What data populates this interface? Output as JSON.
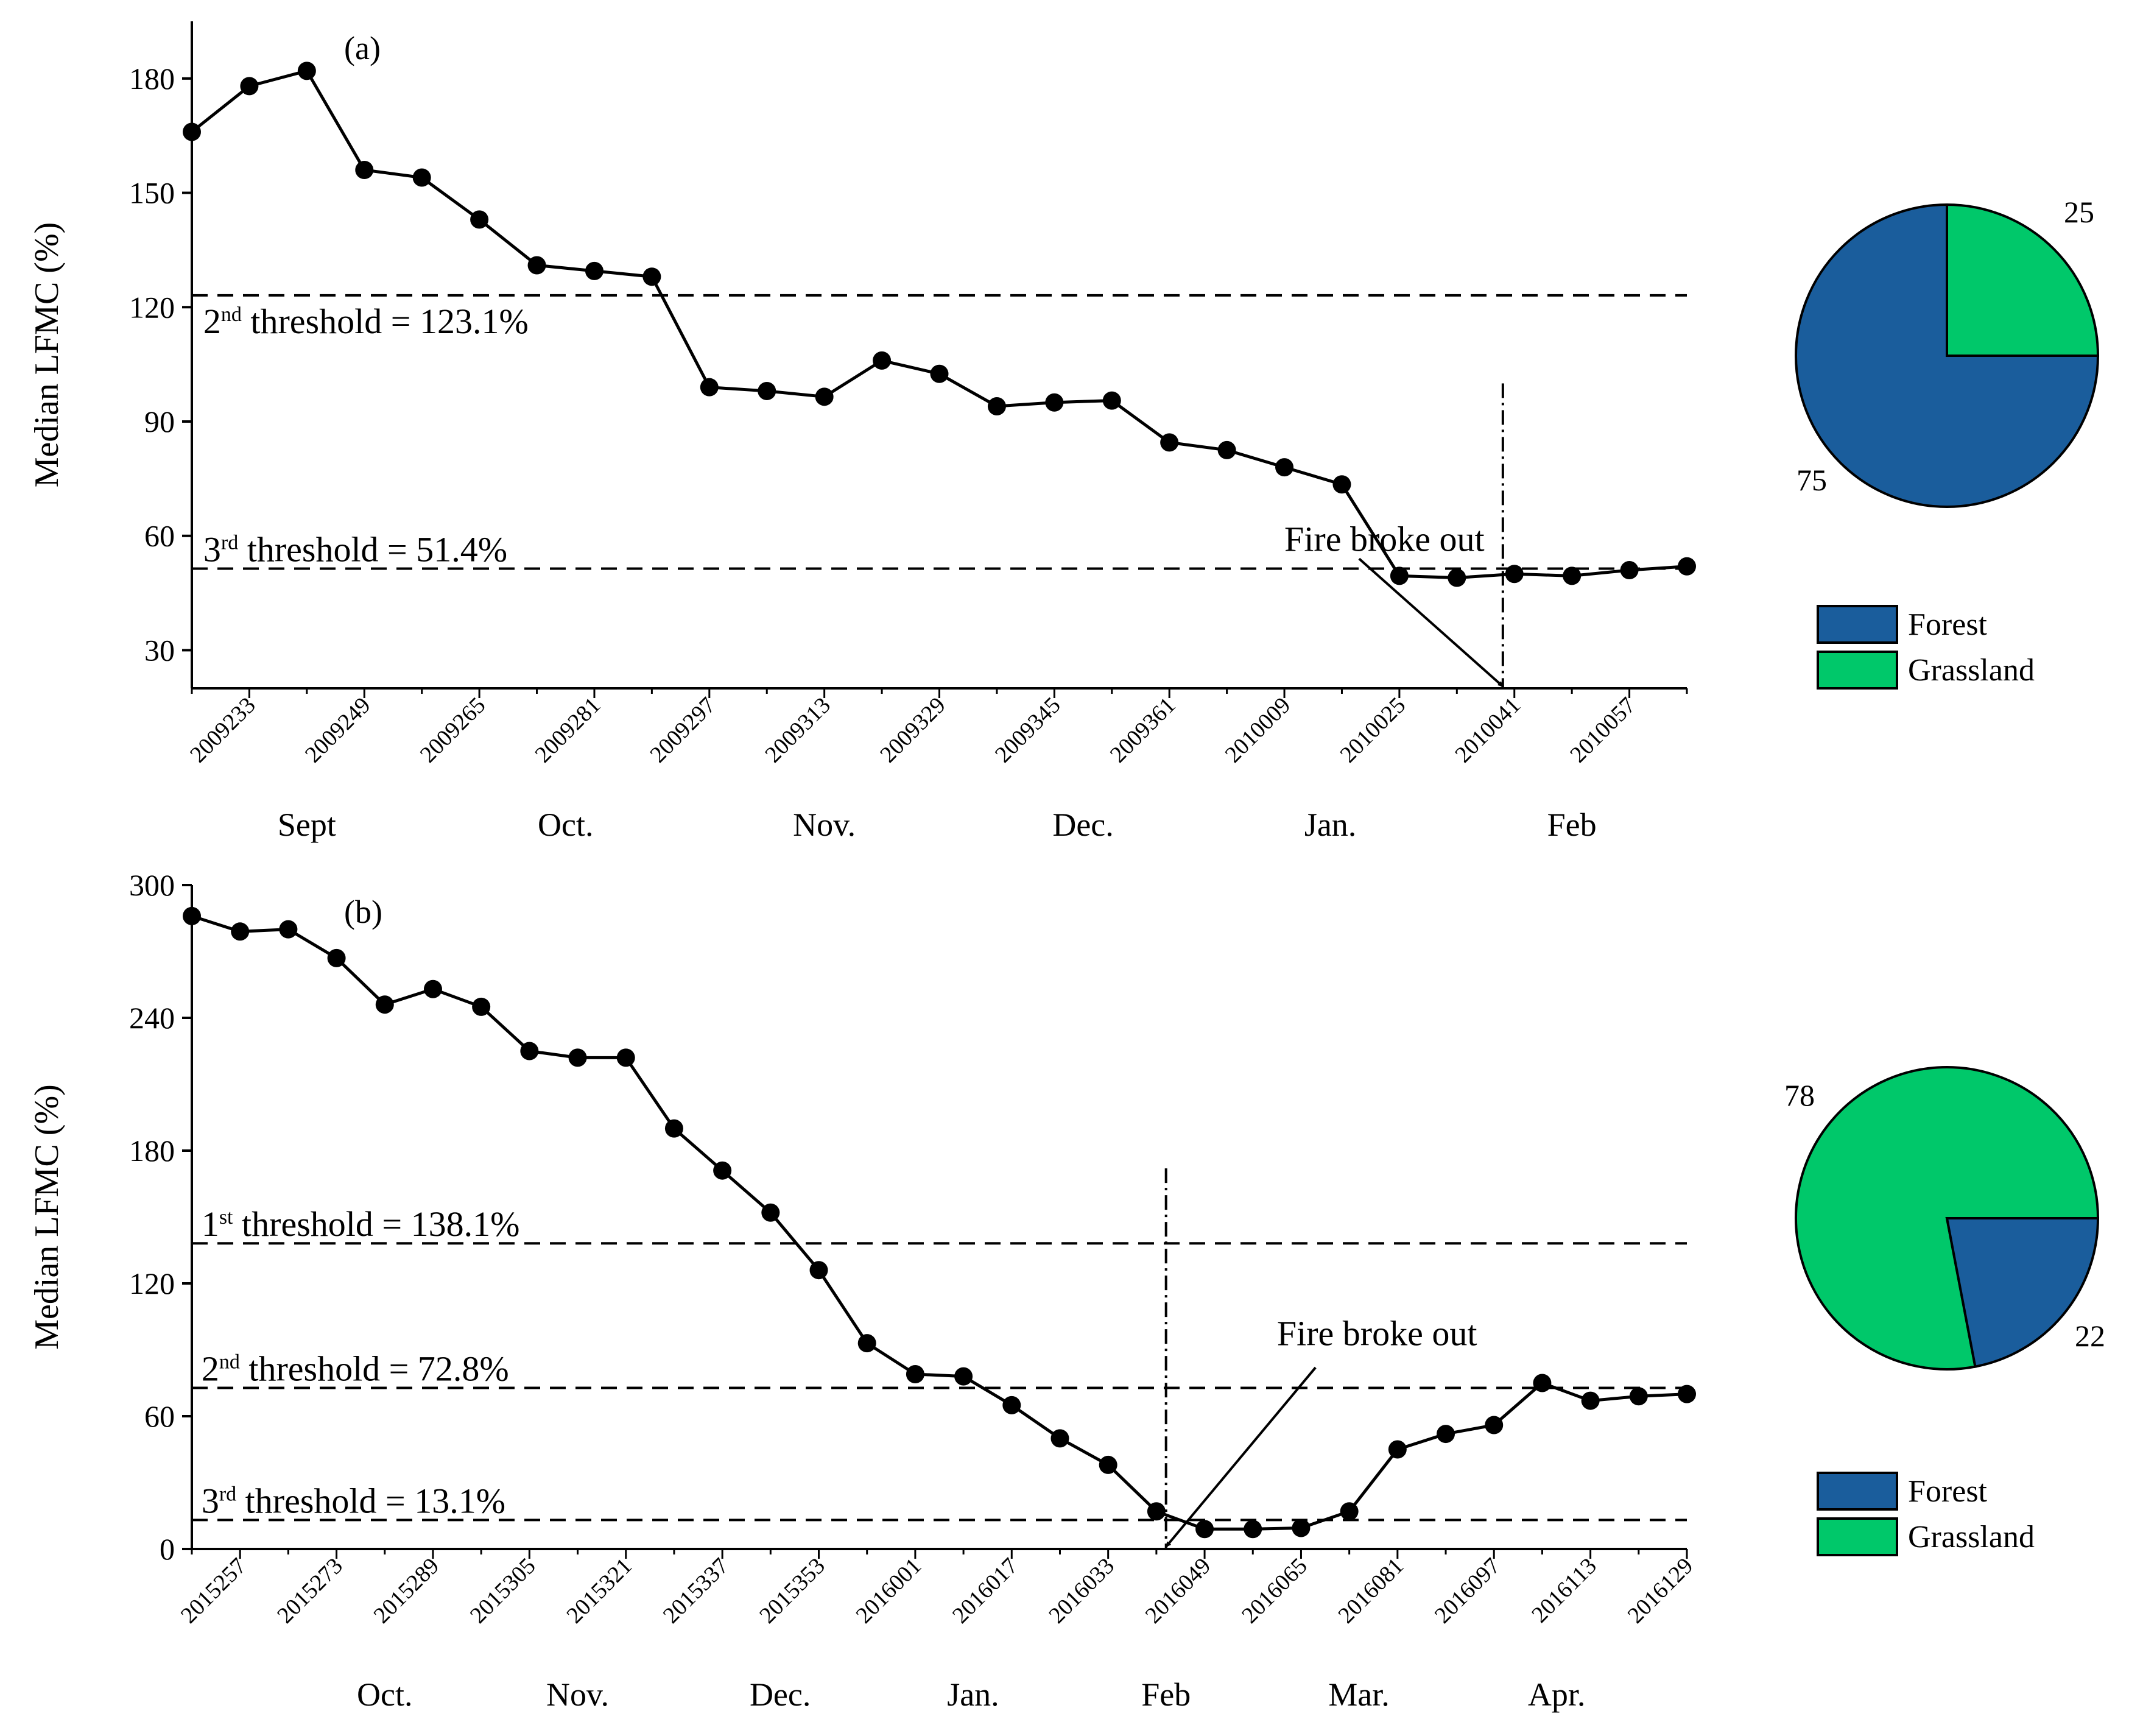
{
  "colors": {
    "forest": "#1a5d9c",
    "grassland": "#00c86a",
    "line": "#000000"
  },
  "chart_data": [
    {
      "type": "line",
      "panel_label": "(a)",
      "ylabel": "Median LFMC (%)",
      "ylim": [
        20,
        195
      ],
      "yticks": [
        30,
        60,
        90,
        120,
        150,
        180
      ],
      "x_tick_labels": [
        "2009233",
        "2009249",
        "2009265",
        "2009281",
        "2009297",
        "2009313",
        "2009329",
        "2009345",
        "2009361",
        "2010009",
        "2010025",
        "2010041",
        "2010057"
      ],
      "x_first_tick_index": 1,
      "x_tick_step": 2,
      "months": [
        {
          "label": "Sept",
          "index": 2
        },
        {
          "label": "Oct.",
          "index": 6.5
        },
        {
          "label": "Nov.",
          "index": 11
        },
        {
          "label": "Dec.",
          "index": 15.5
        },
        {
          "label": "Jan.",
          "index": 19.8
        },
        {
          "label": "Feb",
          "index": 24
        }
      ],
      "series": [
        {
          "name": "Median LFMC",
          "values": [
            166,
            178,
            182,
            156,
            154,
            143,
            131,
            129.5,
            128,
            99,
            98,
            96.5,
            106,
            102.5,
            94,
            95,
            95.5,
            84.5,
            82.5,
            78,
            73.5,
            49.5,
            49,
            50,
            49.5,
            51,
            52
          ]
        }
      ],
      "thresholds": [
        {
          "ord": "2",
          "sup": "nd",
          "rest": " threshold = 123.1%",
          "value": 123.1,
          "label_index": 0.2
        },
        {
          "ord": "3",
          "sup": "rd",
          "rest": " threshold = 51.4%",
          "value": 51.4,
          "label_index": 0.2
        }
      ],
      "fire_event": {
        "label": "Fire broke out",
        "x_index": 22.8,
        "line_top": 100,
        "label_x_index": 19,
        "label_y": 56,
        "arrow_from": [
          20.3,
          54
        ],
        "arrow_to": [
          22.8,
          20.5
        ]
      },
      "pie": {
        "slices": [
          {
            "name": "Forest",
            "value": 75,
            "label": "75"
          },
          {
            "name": "Grassland",
            "value": 25,
            "label": "25"
          }
        ]
      },
      "legend": [
        {
          "name": "Forest",
          "label": "Forest"
        },
        {
          "name": "Grassland",
          "label": "Grassland"
        }
      ]
    },
    {
      "type": "line",
      "panel_label": "(b)",
      "ylabel": "Median LFMC (%)",
      "ylim": [
        0,
        300
      ],
      "yticks": [
        0,
        60,
        120,
        180,
        240,
        300
      ],
      "x_tick_labels": [
        "2015257",
        "2015273",
        "2015289",
        "2015305",
        "2015321",
        "2015337",
        "2015353",
        "2016001",
        "2016017",
        "2016033",
        "2016049",
        "2016065",
        "2016081",
        "2016097",
        "2016113",
        "2016129"
      ],
      "x_first_tick_index": 1,
      "x_tick_step": 2,
      "months": [
        {
          "label": "Oct.",
          "index": 4
        },
        {
          "label": "Nov.",
          "index": 8
        },
        {
          "label": "Dec.",
          "index": 12.2
        },
        {
          "label": "Jan.",
          "index": 16.2
        },
        {
          "label": "Feb",
          "index": 20.2
        },
        {
          "label": "Mar.",
          "index": 24.2
        },
        {
          "label": "Apr.",
          "index": 28.3
        }
      ],
      "series": [
        {
          "name": "Median LFMC",
          "values": [
            286,
            279,
            280,
            267,
            246,
            253,
            245,
            225,
            222,
            222,
            190,
            171,
            152,
            126,
            93,
            79,
            78,
            65,
            50,
            38,
            17,
            9,
            9,
            9.5,
            17,
            45,
            52,
            56,
            75,
            67,
            69,
            70
          ]
        }
      ],
      "thresholds": [
        {
          "ord": "1",
          "sup": "st",
          "rest": " threshold = 138.1%",
          "value": 138.1,
          "label_index": 0.2
        },
        {
          "ord": "2",
          "sup": "nd",
          "rest": " threshold = 72.8%",
          "value": 72.8,
          "label_index": 0.2
        },
        {
          "ord": "3",
          "sup": "rd",
          "rest": " threshold = 13.1%",
          "value": 13.1,
          "label_index": 0.2
        }
      ],
      "fire_event": {
        "label": "Fire broke out",
        "x_index": 20.2,
        "line_top": 172,
        "label_x_index": 22.5,
        "label_y": 92,
        "arrow_from": [
          23.3,
          82
        ],
        "arrow_to": [
          20.2,
          1
        ]
      },
      "pie": {
        "slices": [
          {
            "name": "Grassland",
            "value": 78,
            "label": "78"
          },
          {
            "name": "Forest",
            "value": 22,
            "label": "22"
          }
        ]
      },
      "legend": [
        {
          "name": "Forest",
          "label": "Forest"
        },
        {
          "name": "Grassland",
          "label": "Grassland"
        }
      ]
    }
  ]
}
